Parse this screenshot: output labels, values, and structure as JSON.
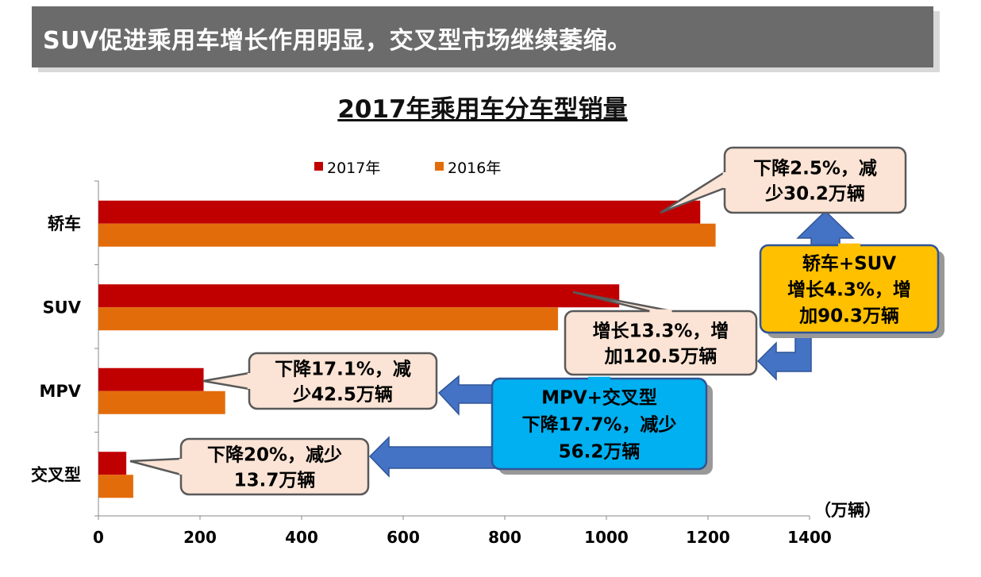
{
  "banner": {
    "text": "SUV促进乘用车增长作用明显，交叉型市场继续萎缩。"
  },
  "chart_data": {
    "type": "bar",
    "orientation": "horizontal",
    "title": "2017年乘用车分车型销量",
    "unit_label": "（万辆）",
    "categories": [
      "轿车",
      "SUV",
      "MPV",
      "交叉型"
    ],
    "series": [
      {
        "name": "2017年",
        "color": "#c00000",
        "values": [
          1184.8,
          1025.3,
          207.1,
          54.9
        ]
      },
      {
        "name": "2016年",
        "color": "#e36c0a",
        "values": [
          1215.0,
          904.8,
          249.6,
          68.6
        ]
      }
    ],
    "xlim": [
      0,
      1400
    ],
    "xticks": [
      "0",
      "200",
      "400",
      "600",
      "800",
      "1000",
      "1200",
      "1400"
    ],
    "legend_position": "top",
    "grid": false
  },
  "callouts": [
    {
      "id": "sedan",
      "lines": [
        "下降2.5%，减",
        "少30.2万辆"
      ]
    },
    {
      "id": "suv",
      "lines": [
        "增长13.3%，增",
        "加120.5万辆"
      ]
    },
    {
      "id": "mpv",
      "lines": [
        "下降17.1%，减",
        "少42.5万辆"
      ]
    },
    {
      "id": "crossover",
      "lines": [
        "下降20%，减少",
        "13.7万辆"
      ]
    },
    {
      "id": "sedan-suv-total",
      "lines": [
        "轿车+SUV",
        "增长4.3%，增",
        "加90.3万辆"
      ]
    },
    {
      "id": "mpv-crossover-total",
      "lines": [
        "MPV+交叉型",
        "下降17.7%，减少",
        "56.2万辆"
      ]
    }
  ],
  "colors": {
    "banner_bg": "#6b6b6b",
    "callout_fill": "#fbe4d5",
    "callout_border": "#595959",
    "summary_gold": "#ffc000",
    "summary_blue": "#00b0f0",
    "arrow_blue": "#4472c4"
  }
}
